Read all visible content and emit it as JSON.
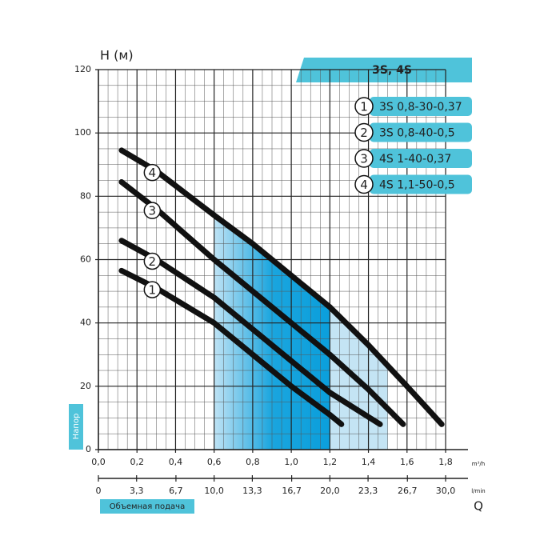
{
  "chart_data": {
    "type": "line",
    "title": "3S, 4S",
    "y_label": "H (м)",
    "y_side_label": "Напор",
    "x_label": "Объемная подача",
    "x_symbol": "Q",
    "x_unit": "m³/h",
    "x2_unit": "l/min",
    "xlim": [
      0,
      1.8
    ],
    "xticks": [
      {
        "value": 0,
        "label": "0,0"
      },
      {
        "value": 0.2,
        "label": "0,2"
      },
      {
        "value": 0.4,
        "label": "0,4"
      },
      {
        "value": 0.6,
        "label": "0,6"
      },
      {
        "value": 0.8,
        "label": "0,8"
      },
      {
        "value": 1.0,
        "label": "1,0"
      },
      {
        "value": 1.2,
        "label": "1,2"
      },
      {
        "value": 1.4,
        "label": "1,4"
      },
      {
        "value": 1.6,
        "label": "1,6"
      },
      {
        "value": 1.8,
        "label": "1,8"
      }
    ],
    "x2lim": [
      0,
      30
    ],
    "x2ticks": [
      0,
      {
        "value": 3.3,
        "label": "3,3"
      },
      {
        "value": 6.7,
        "label": "6,7"
      },
      {
        "value": 10.0,
        "label": "10,0"
      },
      {
        "value": 13.3,
        "label": "13,3"
      },
      {
        "value": 16.7,
        "label": "16,7"
      },
      {
        "value": 20.0,
        "label": "20,0"
      },
      {
        "value": 23.3,
        "label": "23,3"
      },
      {
        "value": 26.7,
        "label": "26,7"
      },
      {
        "value": 30.0,
        "label": "30,0"
      }
    ],
    "ylim": [
      0,
      120
    ],
    "yticks": [
      0,
      20,
      40,
      60,
      80,
      100,
      120
    ],
    "grid": true,
    "minor_grid": 4,
    "shaded_ranges": [
      {
        "x": [
          0.6,
          1.5
        ],
        "color": "#c4e4f4"
      },
      {
        "x": [
          0.6,
          1.2
        ],
        "color": "#14a3dd"
      }
    ],
    "series": [
      {
        "name": "3S 0,8-30-0,37",
        "label": "1",
        "color": "#111111",
        "x": [
          0.12,
          0.3,
          0.6,
          0.8,
          1.0,
          1.2,
          1.26
        ],
        "values": [
          56.5,
          51,
          40,
          30,
          20,
          11,
          8
        ]
      },
      {
        "name": "3S 0,8-40-0,5",
        "label": "2",
        "color": "#111111",
        "x": [
          0.12,
          0.3,
          0.6,
          0.8,
          1.0,
          1.2,
          1.46
        ],
        "values": [
          66,
          60,
          48,
          38,
          28,
          18,
          8
        ]
      },
      {
        "name": "4S 1-40-0,37",
        "label": "3",
        "color": "#111111",
        "x": [
          0.12,
          0.3,
          0.6,
          0.8,
          1.0,
          1.2,
          1.4,
          1.58
        ],
        "values": [
          84.5,
          76,
          60,
          50,
          40,
          30,
          19,
          8
        ]
      },
      {
        "name": "4S 1,1-50-0,5",
        "label": "4",
        "color": "#111111",
        "x": [
          0.12,
          0.3,
          0.6,
          0.8,
          1.0,
          1.2,
          1.4,
          1.6,
          1.78
        ],
        "values": [
          94.5,
          88,
          74,
          65,
          55,
          45,
          33,
          20,
          8
        ]
      }
    ]
  }
}
